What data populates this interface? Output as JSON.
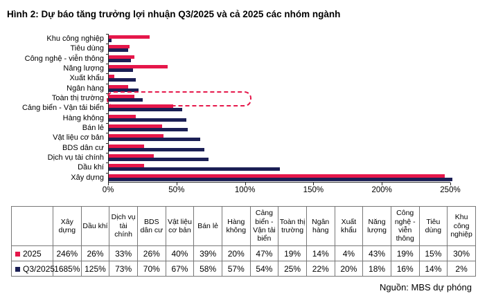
{
  "title": "Hình 2: Dự báo tăng trưởng lợi nhuận Q3/2025 và cả 2025 các nhóm ngành",
  "source": "Nguồn: MBS dự phóng",
  "colors": {
    "series_2025": "#e5174a",
    "series_q3_2025": "#1b1f55",
    "highlight_box": "#e5174a",
    "axis": "#222222"
  },
  "chart_data": {
    "type": "bar",
    "orientation": "horizontal",
    "grid": false,
    "xlim": [
      0,
      250
    ],
    "x_ticks": [
      "0%",
      "50%",
      "100%",
      "150%",
      "200%",
      "250%"
    ],
    "categories_top_to_bottom": [
      "Khu công nghiệp",
      "Tiêu dùng",
      "Công nghệ - viễn thông",
      "Năng lượng",
      "Xuất khẩu",
      "Ngân hàng",
      "Toàn thị trường",
      "Cảng biển - Vận tải biển",
      "Hàng không",
      "Bán lẻ",
      "Vật liệu cơ bản",
      "BDS dân cư",
      "Dịch vụ tài chính",
      "Dầu khí",
      "Xây dựng"
    ],
    "series": [
      {
        "name": "2025",
        "color": "#e5174a",
        "values_pct": [
          30,
          15,
          19,
          43,
          4,
          14,
          19,
          47,
          20,
          39,
          40,
          26,
          33,
          26,
          246
        ]
      },
      {
        "name": "Q3/2025",
        "color": "#1b1f55",
        "values_pct": [
          2,
          14,
          16,
          18,
          20,
          22,
          25,
          54,
          57,
          58,
          67,
          70,
          73,
          125,
          1685
        ]
      }
    ],
    "highlighted_category": "Toàn thị trường"
  },
  "table": {
    "corner_label": "",
    "columns": [
      "Xây dựng",
      "Dầu khí",
      "Dịch vụ tài chính",
      "BDS dân cư",
      "Vật liệu cơ bản",
      "Bán lẻ",
      "Hàng không",
      "Cảng biển - Vận tải biển",
      "Toàn thị trường",
      "Ngân hàng",
      "Xuất khẩu",
      "Năng lượng",
      "Công nghệ - viễn thông",
      "Tiêu dùng",
      "Khu công nghiệp"
    ],
    "rows": [
      {
        "legend": "2025",
        "legend_color": "#e5174a",
        "values": [
          "246%",
          "26%",
          "33%",
          "26%",
          "40%",
          "39%",
          "20%",
          "47%",
          "19%",
          "14%",
          "4%",
          "43%",
          "19%",
          "15%",
          "30%"
        ]
      },
      {
        "legend": "Q3/2025",
        "legend_color": "#1b1f55",
        "values": [
          "1685%",
          "125%",
          "73%",
          "70%",
          "67%",
          "58%",
          "57%",
          "54%",
          "25%",
          "22%",
          "20%",
          "18%",
          "16%",
          "14%",
          "2%"
        ]
      }
    ]
  }
}
